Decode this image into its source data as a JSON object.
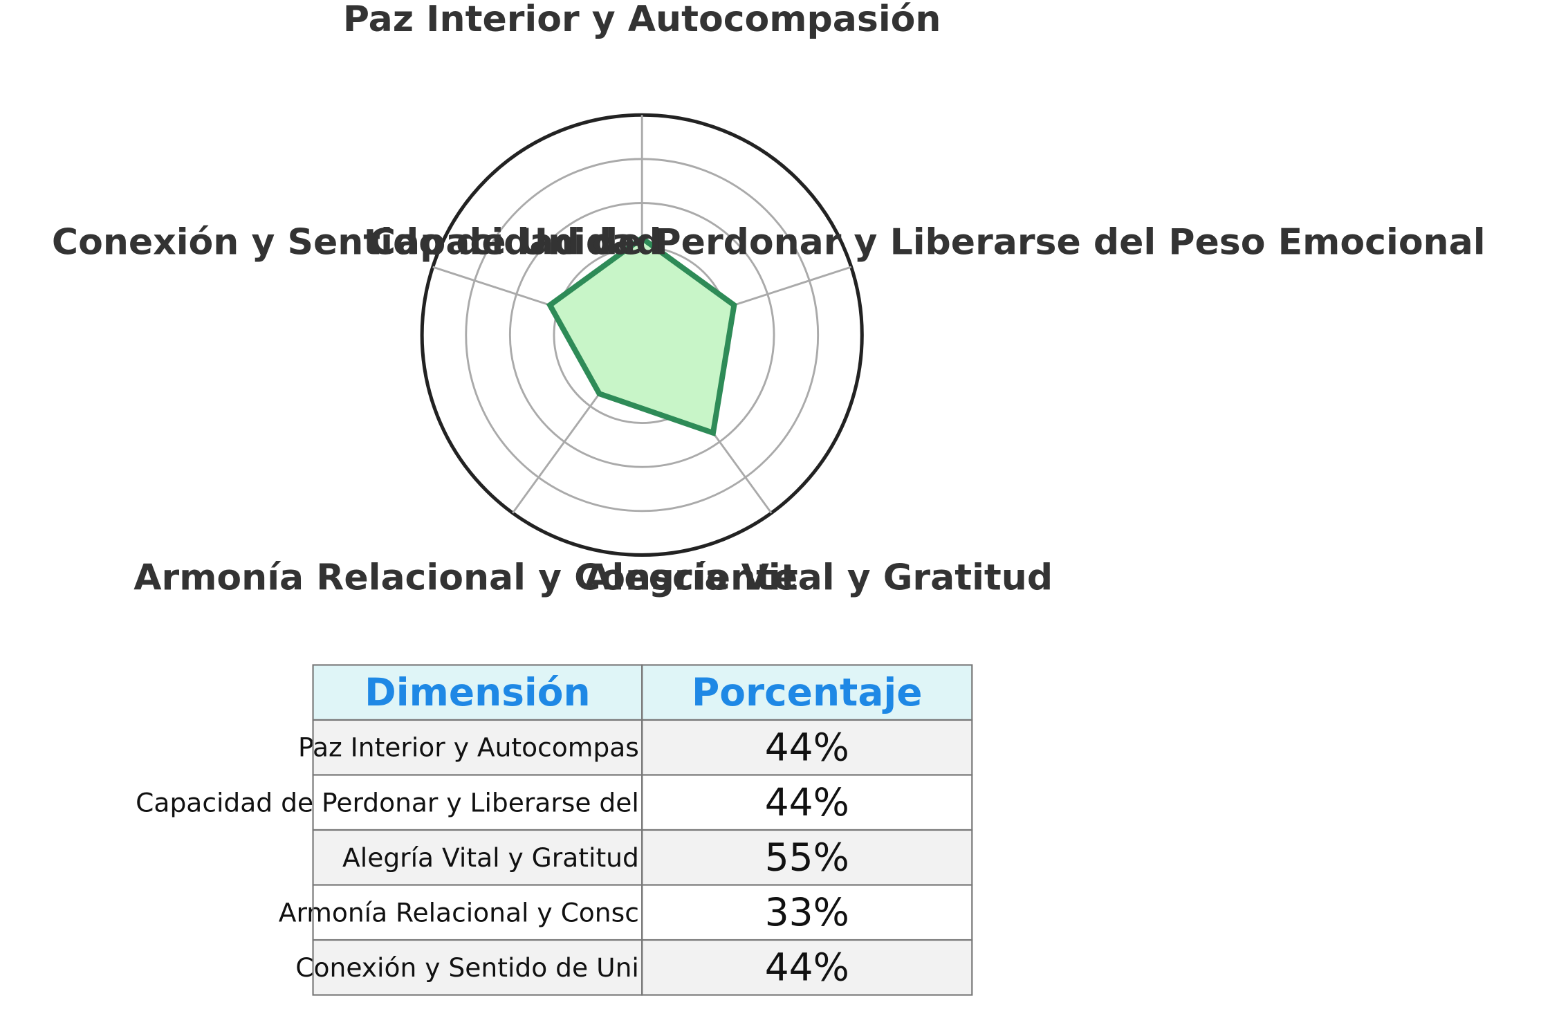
{
  "chart_data": {
    "type": "radar",
    "categories": [
      "Paz Interior y Autocompasión",
      "Capacidad de Perdonar y Liberarse del Peso Emocional",
      "Alegría Vital y Gratitud",
      "Armonía Relacional y Consciente",
      "Conexión y Sentido de Unidad"
    ],
    "values": [
      44,
      44,
      55,
      33,
      44
    ],
    "rlim": [
      0,
      100
    ],
    "grid_rings": [
      20,
      40,
      60,
      80,
      100
    ],
    "grid": true,
    "colors": {
      "line": "#2e8b57",
      "fill": "#c8f5c8",
      "grid": "#aaaaaa",
      "outer": "#222222",
      "label": "#333333"
    }
  },
  "table": {
    "headers": [
      "Dimensión",
      "Porcentaje"
    ],
    "rows": [
      {
        "dimension": "Paz Interior y Autocompas",
        "percent": "44%"
      },
      {
        "dimension": "Capacidad de Perdonar y Liberarse del",
        "percent": "44%"
      },
      {
        "dimension": "Alegría Vital y Gratitud",
        "percent": "55%"
      },
      {
        "dimension": "Armonía Relacional y Consc",
        "percent": "33%"
      },
      {
        "dimension": "Conexión y Sentido de Uni",
        "percent": "44%"
      }
    ],
    "colors": {
      "header_bg": "#dff5f7",
      "header_text": "#1e88e5",
      "stripe_bg": "#f2f2f2",
      "row_bg": "#ffffff",
      "border": "#777777"
    }
  }
}
